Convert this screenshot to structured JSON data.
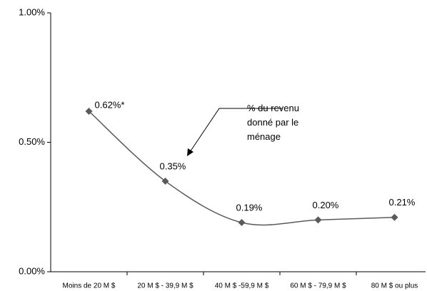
{
  "chart_data": {
    "type": "line",
    "categories": [
      "Moins de 20 M $",
      "20 M $ - 39,9 M $",
      "40 M $ -59,9 M $",
      "60 M $ - 79,9 M $",
      "80 M $ ou plus"
    ],
    "values": [
      0.62,
      0.35,
      0.19,
      0.2,
      0.21
    ],
    "value_labels": [
      "0.62%*",
      "0.35%",
      "0.19%",
      "0.20%",
      "0.21%"
    ],
    "color": "#5a5a5a",
    "ylim": [
      0,
      1
    ],
    "yticks": [
      {
        "value": 0,
        "label": "0.00%"
      },
      {
        "value": 0.5,
        "label": "0.50%"
      },
      {
        "value": 1,
        "label": "1.00%"
      }
    ],
    "annotation": "% du revenu donné par le ménage",
    "smooth": true
  }
}
